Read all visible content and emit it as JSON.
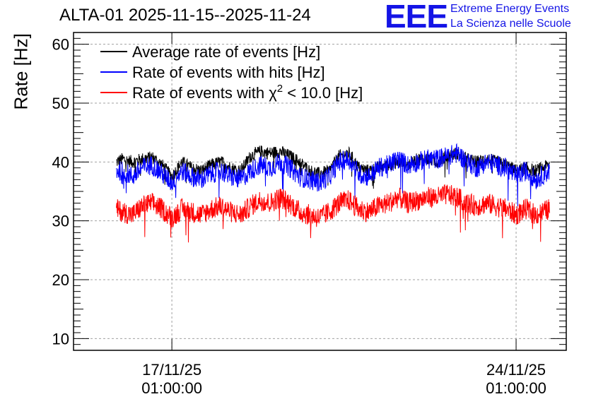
{
  "page": {
    "title": "ALTA-01 2025-11-15--2025-11-24",
    "logo": {
      "mark": "EEE",
      "line1": "Extreme Energy Events",
      "line2": "La Scienza nelle Scuole"
    }
  },
  "chart_data": {
    "type": "line",
    "title": "ALTA-01 2025-11-15--2025-11-24",
    "xlabel": "",
    "ylabel": "Rate [Hz]",
    "ylim": [
      8,
      62
    ],
    "yticks": [
      10,
      20,
      30,
      40,
      50,
      60
    ],
    "x_range_days": [
      0.0,
      10.02
    ],
    "x_data_range_days": [
      0.87,
      9.68
    ],
    "xticks": [
      {
        "day": 2.0,
        "date": "17/11/25",
        "time": "01:00:00"
      },
      {
        "day": 9.0,
        "date": "24/11/25",
        "time": "01:00:00"
      }
    ],
    "grid": true,
    "legend": {
      "position": "top-left",
      "entries": [
        {
          "label": "Average rate of events [Hz]",
          "color": "#000000"
        },
        {
          "label": "Rate of events with hits [Hz]",
          "color": "#0000ff"
        },
        {
          "label_prefix": "Rate of events with ",
          "symbol": "χ",
          "superscript": "2",
          "label_suffix": " < 10.0 [Hz]",
          "color": "#ff0000"
        }
      ]
    },
    "series": [
      {
        "name": "Average rate of events [Hz]",
        "color": "#000000",
        "x": [
          0.87,
          1.0,
          1.2,
          1.4,
          1.6,
          1.8,
          2.0,
          2.2,
          2.4,
          2.6,
          2.8,
          3.0,
          3.2,
          3.4,
          3.6,
          3.8,
          4.0,
          4.2,
          4.4,
          4.6,
          4.8,
          5.0,
          5.2,
          5.4,
          5.6,
          5.8,
          6.0,
          6.2,
          6.4,
          6.6,
          6.8,
          7.0,
          7.2,
          7.4,
          7.6,
          7.8,
          8.0,
          8.2,
          8.4,
          8.6,
          8.8,
          9.0,
          9.2,
          9.4,
          9.68
        ],
        "y": [
          40,
          40.5,
          40,
          40.5,
          40.8,
          39.5,
          37.5,
          40,
          39,
          38.5,
          39.5,
          40,
          39,
          38.5,
          41,
          41.8,
          41.5,
          41.8,
          41,
          40,
          38.5,
          38,
          38.5,
          41,
          41.5,
          39,
          38.5,
          39,
          39.5,
          40,
          39.5,
          40.5,
          40.5,
          40,
          41,
          41.5,
          40.5,
          40,
          40.5,
          40,
          39.5,
          38.5,
          39,
          38.5,
          39.5
        ],
        "noise": 1.1
      },
      {
        "name": "Rate of events with hits [Hz]",
        "color": "#0000ff",
        "x": [
          0.87,
          1.0,
          1.2,
          1.4,
          1.6,
          1.8,
          2.0,
          2.2,
          2.4,
          2.6,
          2.8,
          3.0,
          3.2,
          3.4,
          3.6,
          3.8,
          4.0,
          4.2,
          4.4,
          4.6,
          4.8,
          5.0,
          5.2,
          5.4,
          5.6,
          5.8,
          6.0,
          6.2,
          6.4,
          6.6,
          6.8,
          7.0,
          7.2,
          7.4,
          7.6,
          7.8,
          8.0,
          8.2,
          8.4,
          8.6,
          8.8,
          9.0,
          9.2,
          9.4,
          9.68
        ],
        "y": [
          38.5,
          38.5,
          37.5,
          39,
          39.5,
          38,
          36.5,
          38.5,
          37.5,
          37,
          38,
          38.5,
          37.5,
          37,
          38.5,
          39.5,
          39,
          40,
          39,
          37.5,
          37,
          36.5,
          37.5,
          40,
          40.5,
          38,
          37.5,
          39,
          39.5,
          40.5,
          39.5,
          40,
          40.5,
          40.5,
          41,
          41.5,
          40,
          39,
          40,
          39.5,
          39,
          37.5,
          38.5,
          37,
          38.5
        ],
        "noise": 1.7
      },
      {
        "name": "Rate of events with χ2 < 10.0 [Hz]",
        "color": "#ff0000",
        "x": [
          0.87,
          1.0,
          1.2,
          1.4,
          1.6,
          1.8,
          2.0,
          2.2,
          2.4,
          2.6,
          2.8,
          3.0,
          3.2,
          3.4,
          3.6,
          3.8,
          4.0,
          4.2,
          4.4,
          4.6,
          4.8,
          5.0,
          5.2,
          5.4,
          5.6,
          5.8,
          6.0,
          6.2,
          6.4,
          6.6,
          6.8,
          7.0,
          7.2,
          7.4,
          7.6,
          7.8,
          8.0,
          8.2,
          8.4,
          8.6,
          8.8,
          9.0,
          9.2,
          9.4,
          9.68
        ],
        "y": [
          32,
          31.5,
          31,
          32.5,
          33,
          32,
          30.5,
          32,
          31.5,
          31,
          32,
          32.5,
          31.5,
          31,
          32.5,
          33.5,
          33,
          34,
          33,
          31.5,
          31,
          30.5,
          31.5,
          33,
          33.5,
          32,
          31.5,
          32.5,
          33,
          34,
          33,
          33.5,
          34,
          34,
          34.5,
          34,
          33,
          32.5,
          33,
          32.5,
          32,
          31,
          32,
          31,
          32
        ],
        "noise": 1.8
      }
    ]
  }
}
